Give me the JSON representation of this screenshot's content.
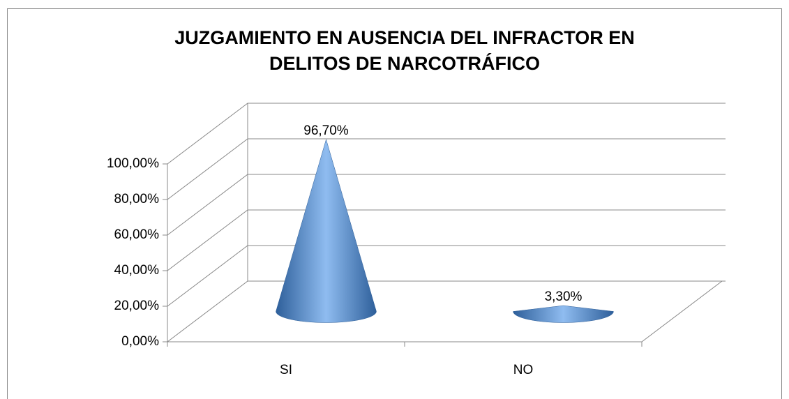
{
  "chart_data": {
    "type": "cone",
    "title": [
      "JUZGAMIENTO EN AUSENCIA DEL INFRACTOR EN",
      "DELITOS DE NARCOTRÁFICO"
    ],
    "categories": [
      "SI",
      "NO"
    ],
    "values": [
      96.7,
      3.3
    ],
    "value_labels": [
      "96,70%",
      "3,30%"
    ],
    "color": "#4f81bd",
    "ylim": [
      0,
      100
    ],
    "yticks": [
      {
        "value": 0,
        "label": "0,00%"
      },
      {
        "value": 20,
        "label": "20,00%"
      },
      {
        "value": 40,
        "label": "40,00%"
      },
      {
        "value": 60,
        "label": "60,00%"
      },
      {
        "value": 80,
        "label": "80,00%"
      },
      {
        "value": 100,
        "label": "100,00%"
      }
    ],
    "grid": true
  }
}
